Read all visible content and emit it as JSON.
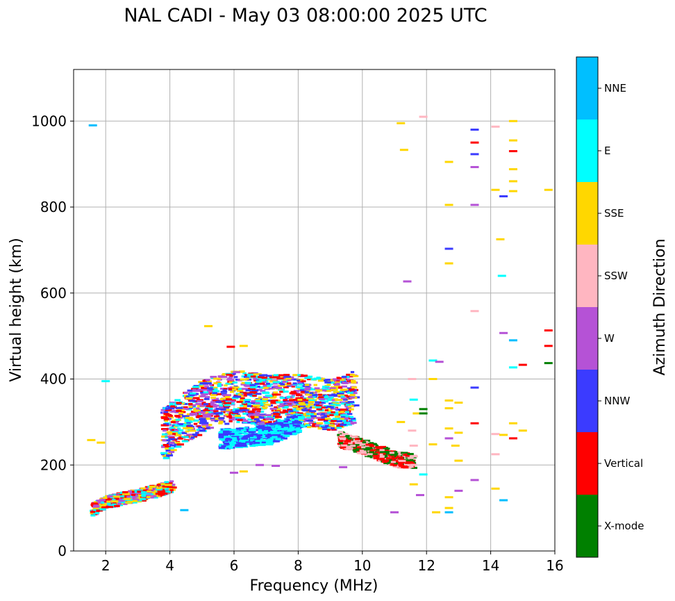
{
  "chart_data": {
    "type": "scatter",
    "title": "NAL CADI - May 03 08:00:00 2025 UTC",
    "xlabel": "Frequency (MHz)",
    "ylabel": "Virtual height (km)",
    "xlim": [
      1.0,
      16.0
    ],
    "ylim": [
      0,
      1120
    ],
    "xticks": [
      2,
      4,
      6,
      8,
      10,
      12,
      14,
      16
    ],
    "yticks": [
      0,
      200,
      400,
      600,
      800,
      1000
    ],
    "grid": true,
    "colorbar": {
      "label": "Azimuth Direction",
      "categories": [
        "X-mode",
        "Vertical",
        "NNW",
        "W",
        "SSW",
        "SSE",
        "E",
        "NNE"
      ],
      "colors": {
        "X-mode": "#008000",
        "Vertical": "#ff0000",
        "NNW": "#3b3bff",
        "W": "#b552d6",
        "SSW": "#ffb6c1",
        "SSE": "#ffd700",
        "E": "#00ffff",
        "NNE": "#00bfff"
      }
    },
    "clusters": [
      {
        "name": "low E-layer trace",
        "region": [
          [
            1.5,
            95
          ],
          [
            2.0,
            115
          ],
          [
            3.0,
            130
          ],
          [
            4.0,
            150
          ]
        ],
        "dominant": [
          "Vertical",
          "E",
          "W",
          "SSE"
        ]
      },
      {
        "name": "F-layer trace",
        "region": [
          [
            3.7,
            270
          ],
          [
            5.0,
            340
          ],
          [
            6.0,
            360
          ],
          [
            7.0,
            350
          ],
          [
            8.0,
            350
          ],
          [
            9.0,
            340
          ],
          [
            9.7,
            360
          ]
        ],
        "dominant": [
          "Vertical",
          "E",
          "SSE",
          "NNW",
          "W"
        ]
      },
      {
        "name": "lower F trace",
        "region": [
          [
            5.5,
            260
          ],
          [
            7.0,
            270
          ],
          [
            8.0,
            300
          ]
        ],
        "dominant": [
          "E",
          "NNW"
        ]
      },
      {
        "name": "X-mode trace",
        "region": [
          [
            9.2,
            260
          ],
          [
            10.0,
            240
          ],
          [
            11.0,
            212
          ],
          [
            11.5,
            210
          ]
        ],
        "dominant": [
          "X-mode",
          "Vertical",
          "SSW"
        ]
      }
    ],
    "points": [
      {
        "f": 1.6,
        "h": 990,
        "c": "NNE"
      },
      {
        "f": 2.0,
        "h": 395,
        "c": "E"
      },
      {
        "f": 1.55,
        "h": 258,
        "c": "SSE"
      },
      {
        "f": 1.85,
        "h": 252,
        "c": "SSE"
      },
      {
        "f": 5.2,
        "h": 523,
        "c": "SSE"
      },
      {
        "f": 5.9,
        "h": 475,
        "c": "Vertical"
      },
      {
        "f": 6.3,
        "h": 477,
        "c": "SSE"
      },
      {
        "f": 4.45,
        "h": 95,
        "c": "NNE"
      },
      {
        "f": 6.8,
        "h": 200,
        "c": "W"
      },
      {
        "f": 6.3,
        "h": 185,
        "c": "SSE"
      },
      {
        "f": 7.3,
        "h": 198,
        "c": "W"
      },
      {
        "f": 6.0,
        "h": 182,
        "c": "W"
      },
      {
        "f": 9.4,
        "h": 195,
        "c": "W"
      },
      {
        "f": 11.2,
        "h": 995,
        "c": "SSE"
      },
      {
        "f": 11.3,
        "h": 933,
        "c": "SSE"
      },
      {
        "f": 11.9,
        "h": 1010,
        "c": "SSW"
      },
      {
        "f": 11.4,
        "h": 627,
        "c": "W"
      },
      {
        "f": 11.55,
        "h": 400,
        "c": "SSW"
      },
      {
        "f": 11.6,
        "h": 352,
        "c": "E"
      },
      {
        "f": 11.7,
        "h": 320,
        "c": "SSE"
      },
      {
        "f": 11.2,
        "h": 300,
        "c": "SSE"
      },
      {
        "f": 11.9,
        "h": 330,
        "c": "X-mode"
      },
      {
        "f": 11.9,
        "h": 320,
        "c": "X-mode"
      },
      {
        "f": 11.55,
        "h": 280,
        "c": "SSW"
      },
      {
        "f": 11.6,
        "h": 245,
        "c": "SSW"
      },
      {
        "f": 12.2,
        "h": 248,
        "c": "SSE"
      },
      {
        "f": 11.6,
        "h": 220,
        "c": "SSW"
      },
      {
        "f": 11.9,
        "h": 178,
        "c": "E"
      },
      {
        "f": 11.6,
        "h": 155,
        "c": "SSE"
      },
      {
        "f": 11.8,
        "h": 130,
        "c": "W"
      },
      {
        "f": 11.0,
        "h": 90,
        "c": "W"
      },
      {
        "f": 12.2,
        "h": 443,
        "c": "E"
      },
      {
        "f": 12.4,
        "h": 440,
        "c": "W"
      },
      {
        "f": 12.2,
        "h": 400,
        "c": "SSE"
      },
      {
        "f": 12.7,
        "h": 905,
        "c": "SSE"
      },
      {
        "f": 12.7,
        "h": 805,
        "c": "SSE"
      },
      {
        "f": 12.7,
        "h": 703,
        "c": "NNW"
      },
      {
        "f": 12.7,
        "h": 669,
        "c": "SSE"
      },
      {
        "f": 12.7,
        "h": 350,
        "c": "SSE"
      },
      {
        "f": 13.0,
        "h": 345,
        "c": "SSE"
      },
      {
        "f": 12.7,
        "h": 332,
        "c": "SSE"
      },
      {
        "f": 12.7,
        "h": 285,
        "c": "SSE"
      },
      {
        "f": 13.0,
        "h": 275,
        "c": "SSE"
      },
      {
        "f": 12.7,
        "h": 262,
        "c": "W"
      },
      {
        "f": 12.9,
        "h": 245,
        "c": "SSE"
      },
      {
        "f": 13.0,
        "h": 210,
        "c": "SSE"
      },
      {
        "f": 13.0,
        "h": 140,
        "c": "W"
      },
      {
        "f": 12.7,
        "h": 125,
        "c": "SSE"
      },
      {
        "f": 12.7,
        "h": 100,
        "c": "SSE"
      },
      {
        "f": 12.3,
        "h": 90,
        "c": "SSE"
      },
      {
        "f": 12.7,
        "h": 90,
        "c": "NNE"
      },
      {
        "f": 13.5,
        "h": 980,
        "c": "NNW"
      },
      {
        "f": 13.5,
        "h": 950,
        "c": "Vertical"
      },
      {
        "f": 13.5,
        "h": 923,
        "c": "NNW"
      },
      {
        "f": 13.5,
        "h": 893,
        "c": "W"
      },
      {
        "f": 13.5,
        "h": 805,
        "c": "W"
      },
      {
        "f": 13.5,
        "h": 558,
        "c": "SSW"
      },
      {
        "f": 13.5,
        "h": 380,
        "c": "NNW"
      },
      {
        "f": 13.5,
        "h": 297,
        "c": "Vertical"
      },
      {
        "f": 13.5,
        "h": 165,
        "c": "W"
      },
      {
        "f": 14.15,
        "h": 987,
        "c": "SSW"
      },
      {
        "f": 14.15,
        "h": 840,
        "c": "SSE"
      },
      {
        "f": 14.4,
        "h": 825,
        "c": "NNW"
      },
      {
        "f": 14.3,
        "h": 725,
        "c": "SSE"
      },
      {
        "f": 14.35,
        "h": 640,
        "c": "E"
      },
      {
        "f": 14.4,
        "h": 507,
        "c": "W"
      },
      {
        "f": 14.15,
        "h": 272,
        "c": "SSW"
      },
      {
        "f": 14.4,
        "h": 270,
        "c": "SSE"
      },
      {
        "f": 14.15,
        "h": 225,
        "c": "SSW"
      },
      {
        "f": 14.15,
        "h": 145,
        "c": "SSE"
      },
      {
        "f": 14.4,
        "h": 118,
        "c": "NNE"
      },
      {
        "f": 14.7,
        "h": 1000,
        "c": "SSE"
      },
      {
        "f": 14.7,
        "h": 955,
        "c": "SSE"
      },
      {
        "f": 14.7,
        "h": 930,
        "c": "Vertical"
      },
      {
        "f": 14.7,
        "h": 888,
        "c": "SSE"
      },
      {
        "f": 14.7,
        "h": 860,
        "c": "SSE"
      },
      {
        "f": 14.7,
        "h": 837,
        "c": "SSE"
      },
      {
        "f": 14.7,
        "h": 490,
        "c": "NNE"
      },
      {
        "f": 14.7,
        "h": 427,
        "c": "E"
      },
      {
        "f": 15.0,
        "h": 433,
        "c": "Vertical"
      },
      {
        "f": 14.7,
        "h": 297,
        "c": "SSE"
      },
      {
        "f": 15.0,
        "h": 280,
        "c": "SSE"
      },
      {
        "f": 14.7,
        "h": 262,
        "c": "Vertical"
      },
      {
        "f": 15.8,
        "h": 840,
        "c": "SSE"
      },
      {
        "f": 15.8,
        "h": 513,
        "c": "Vertical"
      },
      {
        "f": 15.8,
        "h": 477,
        "c": "Vertical"
      },
      {
        "f": 15.8,
        "h": 437,
        "c": "X-mode"
      }
    ]
  }
}
